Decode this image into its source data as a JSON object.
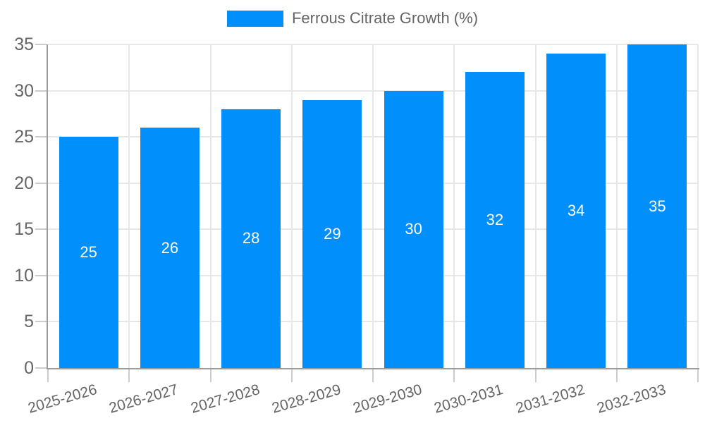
{
  "legend": {
    "label": "Ferrous Citrate Growth (%)"
  },
  "colors": {
    "bar": "#008FFB",
    "grid": "#e7e7e7",
    "axis": "#9c9c9c",
    "tickmark": "#cccccc",
    "tick_text": "#666666",
    "value_label": "#ffffff",
    "background": "#ffffff"
  },
  "chart_data": {
    "type": "bar",
    "title": "Ferrous Citrate Growth (%)",
    "categories": [
      "2025-2026",
      "2026-2027",
      "2027-2028",
      "2028-2029",
      "2029-2030",
      "2030-2031",
      "2031-2032",
      "2032-2033"
    ],
    "values": [
      25,
      26,
      28,
      29,
      30,
      32,
      34,
      35
    ],
    "value_labels": [
      "25",
      "26",
      "28",
      "29",
      "30",
      "32",
      "34",
      "35"
    ],
    "xlabel": "",
    "ylabel": "",
    "ylim": [
      0,
      35
    ],
    "ytick_step": 5,
    "yticks": [
      0,
      5,
      10,
      15,
      20,
      25,
      30,
      35
    ],
    "grid": true,
    "legend_position": "top-center",
    "value_label_position": "inside-center",
    "x_label_rotation_deg": -16
  }
}
